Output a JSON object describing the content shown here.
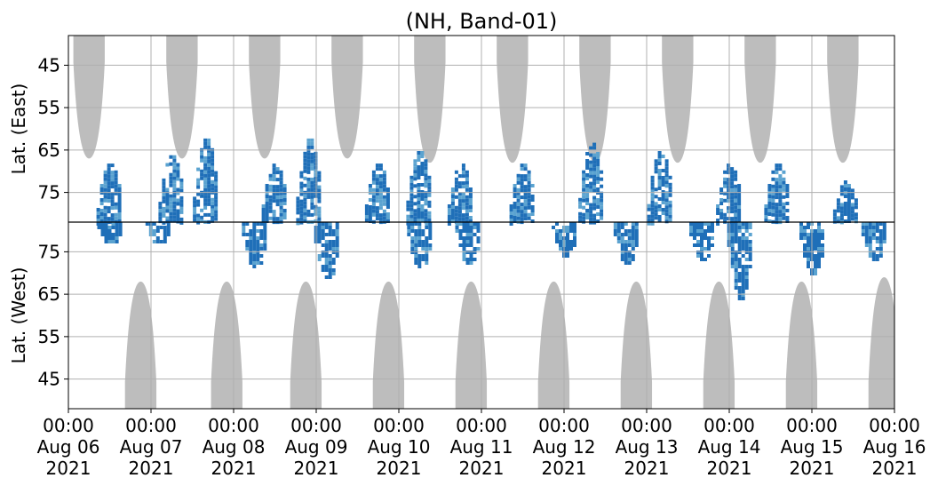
{
  "chart_data": {
    "type": "heatmap",
    "title": "(NH, Band-01)",
    "x_axis": {
      "range": [
        "2021-08-06 00:00",
        "2021-08-16 00:00"
      ],
      "ticks": [
        {
          "time": "00:00",
          "day": "Aug 06",
          "year": "2021"
        },
        {
          "time": "00:00",
          "day": "Aug 07",
          "year": "2021"
        },
        {
          "time": "00:00",
          "day": "Aug 08",
          "year": "2021"
        },
        {
          "time": "00:00",
          "day": "Aug 09",
          "year": "2021"
        },
        {
          "time": "00:00",
          "day": "Aug 10",
          "year": "2021"
        },
        {
          "time": "00:00",
          "day": "Aug 11",
          "year": "2021"
        },
        {
          "time": "00:00",
          "day": "Aug 12",
          "year": "2021"
        },
        {
          "time": "00:00",
          "day": "Aug 13",
          "year": "2021"
        },
        {
          "time": "00:00",
          "day": "Aug 14",
          "year": "2021"
        },
        {
          "time": "00:00",
          "day": "Aug 15",
          "year": "2021"
        },
        {
          "time": "00:00",
          "day": "Aug 16",
          "year": "2021"
        }
      ]
    },
    "y_axis_east": {
      "label": "Lat. (East)",
      "ticks": [
        "45",
        "55",
        "65",
        "75"
      ],
      "range": [
        38,
        82
      ]
    },
    "y_axis_west": {
      "label": "Lat. (West)",
      "ticks": [
        "75",
        "65",
        "55",
        "45"
      ],
      "range": [
        82,
        38
      ]
    },
    "grid": true,
    "colors": {
      "no_coverage": "#bdbdbd",
      "strong": "#1f6fb8",
      "weak": "#5ba3d0",
      "divider": "#000000"
    },
    "no_coverage_east": [
      {
        "center": "2021-08-06 06:00",
        "min_lat": 67
      },
      {
        "center": "2021-08-07 09:00",
        "min_lat": 67
      },
      {
        "center": "2021-08-08 09:00",
        "min_lat": 67
      },
      {
        "center": "2021-08-09 09:00",
        "min_lat": 67
      },
      {
        "center": "2021-08-10 09:00",
        "min_lat": 68
      },
      {
        "center": "2021-08-11 09:00",
        "min_lat": 68
      },
      {
        "center": "2021-08-12 09:00",
        "min_lat": 68
      },
      {
        "center": "2021-08-13 09:00",
        "min_lat": 68
      },
      {
        "center": "2021-08-14 09:00",
        "min_lat": 68
      },
      {
        "center": "2021-08-15 09:00",
        "min_lat": 68
      }
    ],
    "no_coverage_west": [
      {
        "center": "2021-08-06 21:00",
        "min_lat": 68
      },
      {
        "center": "2021-08-07 22:00",
        "min_lat": 68
      },
      {
        "center": "2021-08-08 21:00",
        "min_lat": 68
      },
      {
        "center": "2021-08-09 21:00",
        "min_lat": 68
      },
      {
        "center": "2021-08-10 21:00",
        "min_lat": 68
      },
      {
        "center": "2021-08-11 21:00",
        "min_lat": 68
      },
      {
        "center": "2021-08-12 21:00",
        "min_lat": 68
      },
      {
        "center": "2021-08-13 21:00",
        "min_lat": 68
      },
      {
        "center": "2021-08-14 21:00",
        "min_lat": 68
      },
      {
        "center": "2021-08-15 21:00",
        "min_lat": 69
      }
    ],
    "activity_east": [
      {
        "time": "2021-08-06 12:00",
        "min_lat": 68
      },
      {
        "time": "2021-08-07 06:00",
        "min_lat": 66
      },
      {
        "time": "2021-08-07 16:00",
        "min_lat": 62
      },
      {
        "time": "2021-08-08 12:00",
        "min_lat": 68
      },
      {
        "time": "2021-08-08 22:00",
        "min_lat": 62
      },
      {
        "time": "2021-08-09 18:00",
        "min_lat": 68
      },
      {
        "time": "2021-08-10 06:00",
        "min_lat": 65
      },
      {
        "time": "2021-08-10 18:00",
        "min_lat": 68
      },
      {
        "time": "2021-08-11 12:00",
        "min_lat": 68
      },
      {
        "time": "2021-08-12 08:00",
        "min_lat": 63
      },
      {
        "time": "2021-08-13 04:00",
        "min_lat": 65
      },
      {
        "time": "2021-08-14 00:00",
        "min_lat": 68
      },
      {
        "time": "2021-08-14 14:00",
        "min_lat": 68
      },
      {
        "time": "2021-08-15 10:00",
        "min_lat": 72
      }
    ],
    "activity_west": [
      {
        "time": "2021-08-06 12:00",
        "min_lat": 77
      },
      {
        "time": "2021-08-07 02:00",
        "min_lat": 77
      },
      {
        "time": "2021-08-08 06:00",
        "min_lat": 71
      },
      {
        "time": "2021-08-09 03:00",
        "min_lat": 68
      },
      {
        "time": "2021-08-10 06:00",
        "min_lat": 71
      },
      {
        "time": "2021-08-10 20:00",
        "min_lat": 72
      },
      {
        "time": "2021-08-12 00:00",
        "min_lat": 74
      },
      {
        "time": "2021-08-12 18:00",
        "min_lat": 72
      },
      {
        "time": "2021-08-13 16:00",
        "min_lat": 73
      },
      {
        "time": "2021-08-14 03:00",
        "min_lat": 64
      },
      {
        "time": "2021-08-15 00:00",
        "min_lat": 70
      },
      {
        "time": "2021-08-15 18:00",
        "min_lat": 73
      }
    ]
  }
}
